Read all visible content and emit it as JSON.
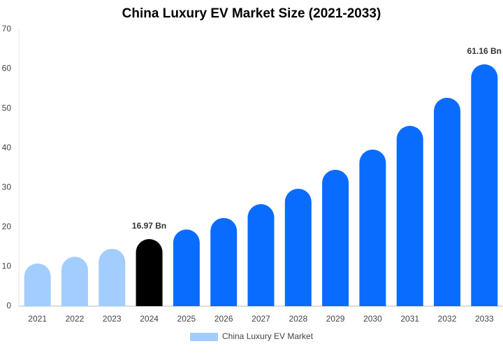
{
  "chart_data": {
    "type": "bar",
    "title": "China Luxury EV Market Size (2021-2033)",
    "categories": [
      "2021",
      "2022",
      "2023",
      "2024",
      "2025",
      "2026",
      "2027",
      "2028",
      "2029",
      "2030",
      "2031",
      "2032",
      "2033"
    ],
    "series": [
      {
        "name": "China Luxury EV Market",
        "color": "#a3cdff",
        "colors": [
          "#a3cdff",
          "#a3cdff",
          "#a3cdff",
          "#000000",
          "#0a6cff",
          "#0a6cff",
          "#0a6cff",
          "#0a6cff",
          "#0a6cff",
          "#0a6cff",
          "#0a6cff",
          "#0a6cff",
          "#0a6cff"
        ],
        "values": [
          10.8,
          12.5,
          14.5,
          16.97,
          19.4,
          22.3,
          25.8,
          29.7,
          34.5,
          39.6,
          45.6,
          52.7,
          61.16
        ],
        "value_labels": [
          null,
          null,
          null,
          "16.97 Bn",
          null,
          null,
          null,
          null,
          null,
          null,
          null,
          null,
          "61.16 Bn"
        ]
      }
    ],
    "ylim": [
      0,
      70
    ],
    "yticks": [
      0,
      10,
      20,
      30,
      40,
      50,
      60,
      70
    ],
    "grid": false,
    "legend": "bottom"
  }
}
